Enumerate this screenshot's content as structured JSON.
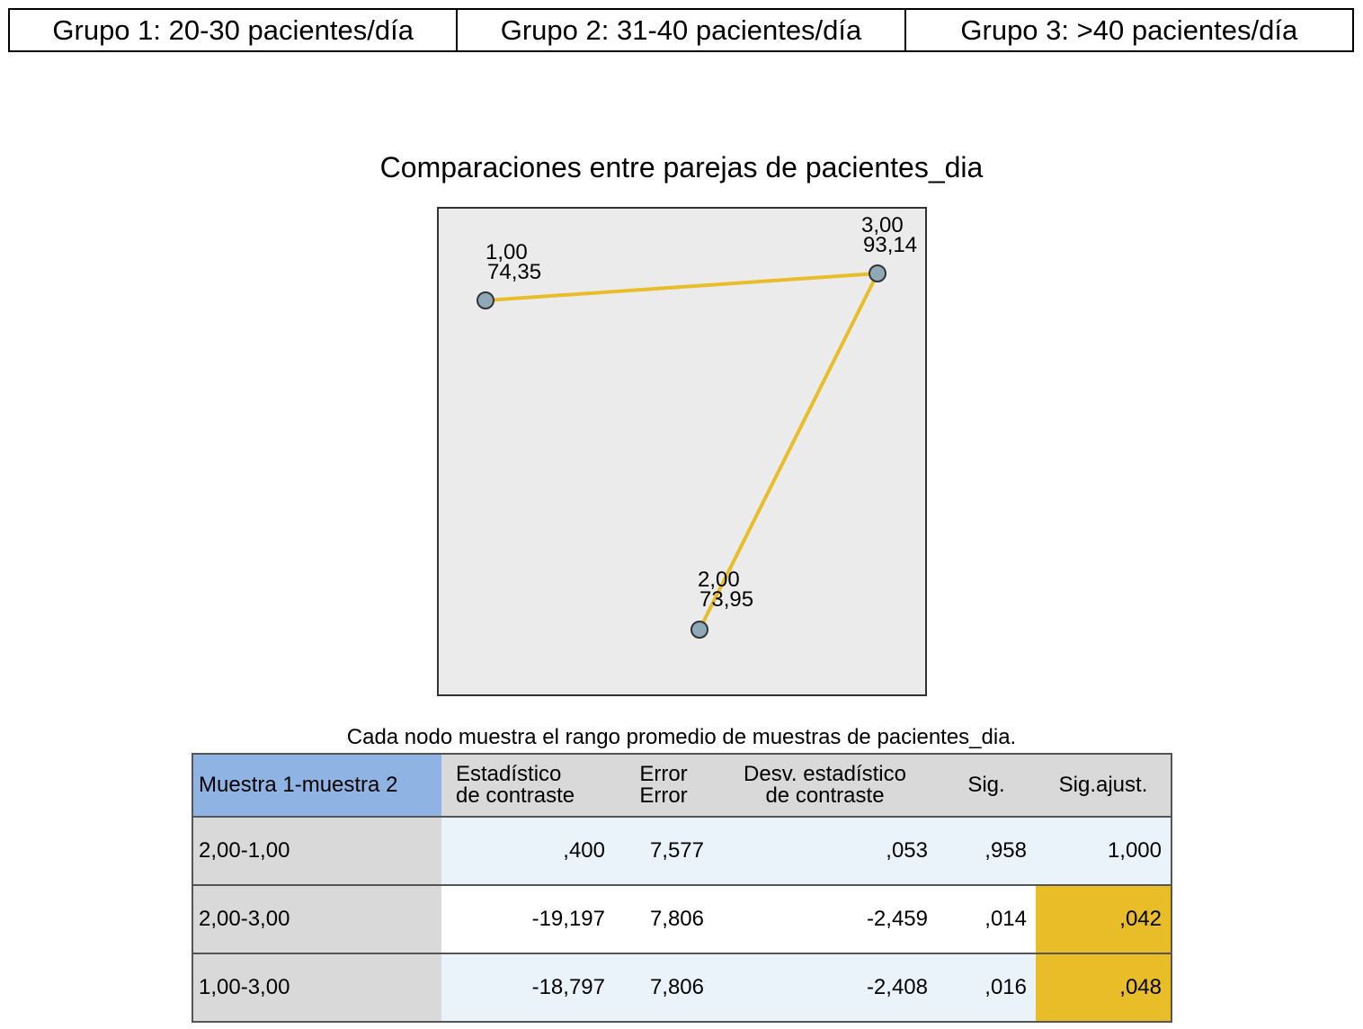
{
  "groups": [
    "Grupo 1: 20-30 pacientes/día",
    "Grupo 2: 31-40 pacientes/día",
    "Grupo 3: >40 pacientes/día"
  ],
  "chart_data": {
    "type": "network",
    "title": "Comparaciones entre parejas de pacientes_dia",
    "caption": "Cada nodo muestra el rango promedio de muestras de pacientes_dia.",
    "nodes": [
      {
        "label": "1,00",
        "mean_rank": "74,35"
      },
      {
        "label": "2,00",
        "mean_rank": "73,95"
      },
      {
        "label": "3,00",
        "mean_rank": "93,14"
      }
    ],
    "edges": [
      {
        "from": "1,00",
        "to": "3,00"
      },
      {
        "from": "2,00",
        "to": "3,00"
      }
    ],
    "colors": {
      "edge": "#e8bd28",
      "node_fill": "#8fa9b8",
      "plot_bg": "#ebebeb",
      "highlight": "#e8bd28",
      "header_key": "#8fb4e3"
    }
  },
  "table": {
    "headers": [
      [
        "Muestra 1-muestra 2"
      ],
      [
        "Estadístico",
        "de contraste"
      ],
      [
        "Error",
        "Error"
      ],
      [
        "Desv. estadístico",
        "de contraste"
      ],
      [
        "Sig."
      ],
      [
        "Sig.ajust."
      ]
    ],
    "rows": [
      {
        "pair": "2,00-1,00",
        "stat": ",400",
        "err": "7,577",
        "std": ",053",
        "sig": ",958",
        "adj": "1,000",
        "highlight": false
      },
      {
        "pair": "2,00-3,00",
        "stat": "-19,197",
        "err": "7,806",
        "std": "-2,459",
        "sig": ",014",
        "adj": ",042",
        "highlight": true
      },
      {
        "pair": "1,00-3,00",
        "stat": "-18,797",
        "err": "7,806",
        "std": "-2,408",
        "sig": ",016",
        "adj": ",048",
        "highlight": true
      }
    ]
  }
}
